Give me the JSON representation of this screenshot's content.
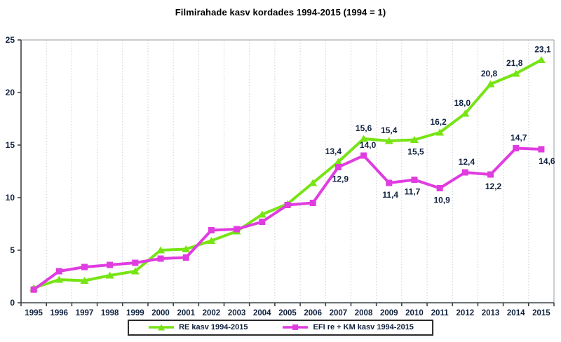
{
  "title": "Filmirahade kasv kordades 1994-2015 (1994 = 1)",
  "colors": {
    "series_re": "#77e414",
    "series_efi": "#e03ce0",
    "axis": "#3f4347",
    "plot_border": "#a9aeb4",
    "gridline": "#c9ced2",
    "label_text": "#10213f",
    "title_text": "#000000",
    "legend_border": "#2a2a2a",
    "background": "#ffffff"
  },
  "legend": {
    "items": [
      {
        "label": "RE kasv 1994-2015",
        "marker": "triangle",
        "color": "#77e414"
      },
      {
        "label": "EFI re + KM kasv 1994-2015",
        "marker": "square",
        "color": "#e03ce0"
      }
    ]
  },
  "chart_data": {
    "type": "line",
    "title": "Filmirahade kasv kordades 1994-2015 (1994 = 1)",
    "xlabel": "",
    "ylabel": "",
    "ylim": [
      0,
      25
    ],
    "yticks": [
      0,
      5,
      10,
      15,
      20,
      25
    ],
    "grid": "vertical-dotted",
    "legend_position": "bottom",
    "decimal_separator": ",",
    "categories": [
      "1995",
      "1996",
      "1997",
      "1998",
      "1999",
      "2000",
      "2001",
      "2002",
      "2003",
      "2004",
      "2005",
      "2006",
      "2007",
      "2008",
      "2009",
      "2010",
      "2011",
      "2012",
      "2013",
      "2014",
      "2015"
    ],
    "series": [
      {
        "name": "RE kasv 1994-2015",
        "color": "#77e414",
        "marker": "triangle",
        "values": [
          1.4,
          2.2,
          2.1,
          2.6,
          3.0,
          5.0,
          5.1,
          5.9,
          6.8,
          8.4,
          9.4,
          11.4,
          13.4,
          15.6,
          15.4,
          15.5,
          16.2,
          18.0,
          20.8,
          21.8,
          23.1
        ],
        "labels": [
          null,
          null,
          null,
          null,
          null,
          null,
          null,
          null,
          null,
          null,
          null,
          null,
          {
            "text": "13,4",
            "pos": "above",
            "dx": -7
          },
          {
            "text": "15,6",
            "pos": "above",
            "dx": 0
          },
          {
            "text": "15,4",
            "pos": "above",
            "dx": 0
          },
          {
            "text": "15,5",
            "pos": "below",
            "dx": 2
          },
          {
            "text": "16,2",
            "pos": "above",
            "dx": -2
          },
          {
            "text": "18,0",
            "pos": "above",
            "dx": -4
          },
          {
            "text": "20,8",
            "pos": "above",
            "dx": -2
          },
          {
            "text": "21,8",
            "pos": "above",
            "dx": -2
          },
          {
            "text": "23,1",
            "pos": "above",
            "dx": 2
          }
        ]
      },
      {
        "name": "EFI re + KM kasv 1994-2015",
        "color": "#e03ce0",
        "marker": "square",
        "values": [
          1.25,
          3.0,
          3.4,
          3.6,
          3.8,
          4.2,
          4.3,
          6.9,
          7.0,
          7.7,
          9.3,
          9.5,
          12.9,
          14.0,
          11.4,
          11.7,
          10.9,
          12.4,
          12.2,
          14.7,
          14.6
        ],
        "labels": [
          null,
          null,
          null,
          null,
          null,
          null,
          null,
          null,
          null,
          null,
          null,
          null,
          {
            "text": "12,9",
            "pos": "below",
            "dx": 3
          },
          {
            "text": "14,0",
            "pos": "above",
            "dx": 6
          },
          {
            "text": "11,4",
            "pos": "below",
            "dx": 2
          },
          {
            "text": "11,7",
            "pos": "below",
            "dx": -3
          },
          {
            "text": "10,9",
            "pos": "below",
            "dx": 3
          },
          {
            "text": "12,4",
            "pos": "above",
            "dx": 2
          },
          {
            "text": "12,2",
            "pos": "below",
            "dx": 4
          },
          {
            "text": "14,7",
            "pos": "above",
            "dx": 4
          },
          {
            "text": "14,6",
            "pos": "below",
            "dx": 8
          }
        ]
      }
    ]
  }
}
